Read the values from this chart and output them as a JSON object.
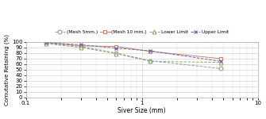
{
  "mesh5_x": [
    0.15,
    0.3,
    0.6,
    1.18,
    4.75
  ],
  "mesh5_y": [
    98,
    92,
    80,
    66,
    52
  ],
  "mesh10_x": [
    0.15,
    0.3,
    0.6,
    1.18,
    4.75
  ],
  "mesh10_y": [
    99,
    93,
    92,
    83,
    70
  ],
  "lower_x": [
    0.15,
    0.3,
    0.6,
    1.18,
    4.75
  ],
  "lower_y": [
    97,
    90,
    79,
    65,
    63
  ],
  "upper_x": [
    0.15,
    0.3,
    0.6,
    1.18,
    4.75
  ],
  "upper_y": [
    99,
    95,
    89,
    84,
    65
  ],
  "mesh5_color": "#999999",
  "mesh10_color": "#c8826e",
  "lower_color": "#8faa6e",
  "upper_color": "#6b6baa",
  "xlabel": "Siver Size (mm)",
  "ylabel": "Comutative Retaining (%)",
  "legend_labels": [
    "(Mesh 5mm.)",
    "(Mesh 10 mm.)",
    "Lower Limit",
    "Upper Limit"
  ],
  "ylim": [
    0,
    100
  ],
  "xlim": [
    0.1,
    10
  ],
  "yticks": [
    0,
    10,
    20,
    30,
    40,
    50,
    60,
    70,
    80,
    90,
    100
  ],
  "background_color": "#ffffff",
  "grid_color": "#cccccc"
}
